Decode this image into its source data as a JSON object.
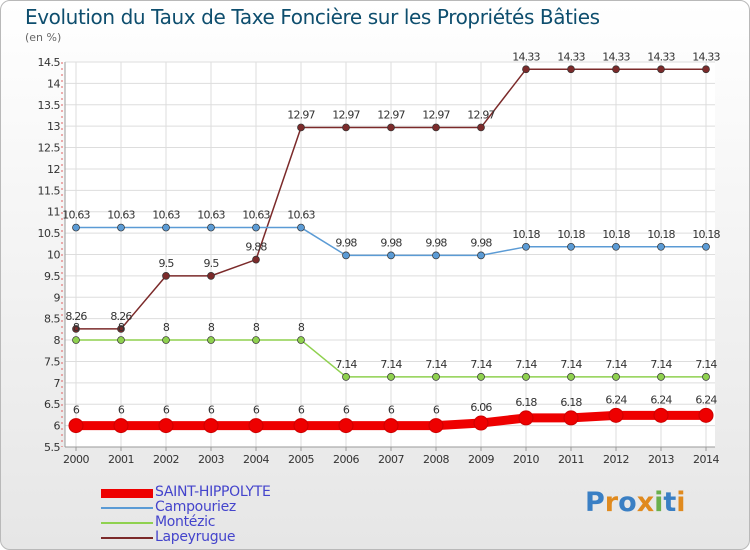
{
  "title": "Evolution du Taux de Taxe Foncière sur les Propriétés Bâties",
  "unit_label": "(en %)",
  "logo": {
    "text": "Proxiti",
    "letters": [
      {
        "char": "P",
        "color": "#3a7fc4"
      },
      {
        "char": "r",
        "color": "#e08a1e"
      },
      {
        "char": "o",
        "color": "#3a7fc4"
      },
      {
        "char": "x",
        "color": "#e08a1e"
      },
      {
        "char": "i",
        "color": "#6ab04c"
      },
      {
        "char": "t",
        "color": "#3a7fc4"
      },
      {
        "char": "i",
        "color": "#e08a1e"
      }
    ]
  },
  "chart_data": {
    "type": "line",
    "title": "Evolution du Taux de Taxe Foncière sur les Propriétés Bâties",
    "ylabel": "(en %)",
    "xlabel": "",
    "ylim": [
      5.5,
      14.5
    ],
    "yticks": [
      "5.5",
      "6",
      "6.5",
      "7",
      "7.5",
      "8",
      "8.5",
      "9",
      "9.5",
      "10",
      "10.5",
      "11",
      "11.5",
      "12",
      "12.5",
      "13",
      "13.5",
      "14",
      "14.5"
    ],
    "categories": [
      "2000",
      "2001",
      "2002",
      "2003",
      "2004",
      "2005",
      "2006",
      "2007",
      "2008",
      "2009",
      "2010",
      "2011",
      "2012",
      "2013",
      "2014"
    ],
    "legend_position": "bottom-left",
    "series": [
      {
        "name": "SAINT-HIPPOLYTE",
        "color": "#ee0000",
        "bold": true,
        "values": [
          6,
          6,
          6,
          6,
          6,
          6,
          6,
          6,
          6,
          6.06,
          6.18,
          6.18,
          6.24,
          6.24,
          6.24
        ],
        "labels": [
          "6",
          "6",
          "6",
          "6",
          "6",
          "6",
          "6",
          "6",
          "6",
          "6.06",
          "6.18",
          "6.18",
          "6.24",
          "6.24",
          "6.24"
        ]
      },
      {
        "name": "Campouriez",
        "color": "#5b9bd5",
        "bold": false,
        "values": [
          10.63,
          10.63,
          10.63,
          10.63,
          10.63,
          10.63,
          9.98,
          9.98,
          9.98,
          9.98,
          10.18,
          10.18,
          10.18,
          10.18,
          10.18
        ],
        "labels": [
          "10.63",
          "10.63",
          "10.63",
          "10.63",
          "10.63",
          "10.63",
          "9.98",
          "9.98",
          "9.98",
          "9.98",
          "10.18",
          "10.18",
          "10.18",
          "10.18",
          "10.18"
        ]
      },
      {
        "name": "Montézic",
        "color": "#8fd14f",
        "bold": false,
        "values": [
          8,
          8,
          8,
          8,
          8,
          8,
          7.14,
          7.14,
          7.14,
          7.14,
          7.14,
          7.14,
          7.14,
          7.14,
          7.14
        ],
        "labels": [
          "8",
          "8",
          "8",
          "8",
          "8",
          "8",
          "7.14",
          "7.14",
          "7.14",
          "7.14",
          "7.14",
          "7.14",
          "7.14",
          "7.14",
          "7.14"
        ]
      },
      {
        "name": "Lapeyrugue",
        "color": "#7b2a2a",
        "bold": false,
        "values": [
          8.26,
          8.26,
          9.5,
          9.5,
          9.88,
          12.97,
          12.97,
          12.97,
          12.97,
          12.97,
          14.33,
          14.33,
          14.33,
          14.33,
          14.33
        ],
        "labels": [
          "8.26",
          "8.26",
          "9.5",
          "9.5",
          "9.88",
          "12.97",
          "12.97",
          "12.97",
          "12.97",
          "12.97",
          "14.33",
          "14.33",
          "14.33",
          "14.33",
          "14.33"
        ]
      }
    ]
  }
}
